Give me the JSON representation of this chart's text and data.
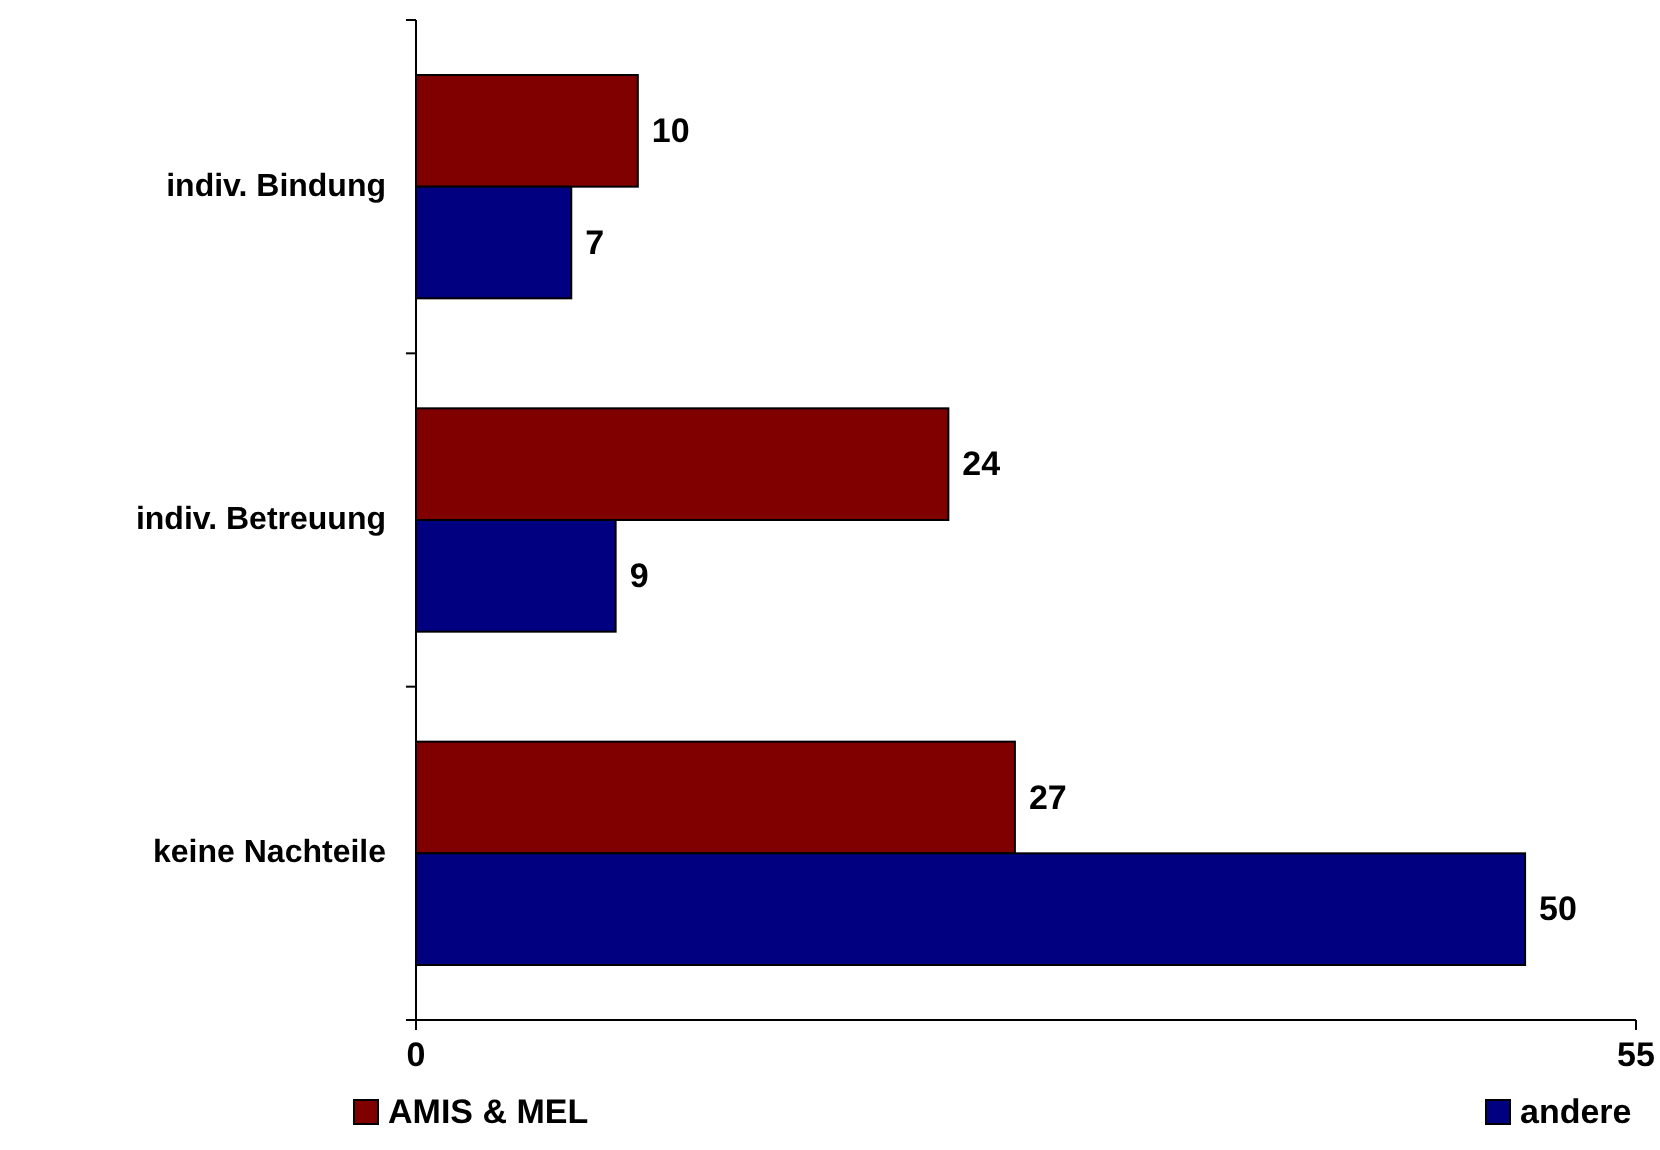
{
  "chart_data": {
    "type": "bar",
    "orientation": "horizontal",
    "categories": [
      "indiv. Bindung",
      "indiv. Betreuung",
      "keine Nachteile"
    ],
    "series": [
      {
        "name": "AMIS & MEL",
        "color": "#800000",
        "values": [
          10,
          24,
          27
        ]
      },
      {
        "name": "andere",
        "color": "#000080",
        "values": [
          7,
          9,
          50
        ]
      }
    ],
    "xlim": [
      0,
      55
    ],
    "xticks": [
      0,
      55
    ],
    "data_labels": true,
    "grid": false,
    "legend": "bottom"
  }
}
